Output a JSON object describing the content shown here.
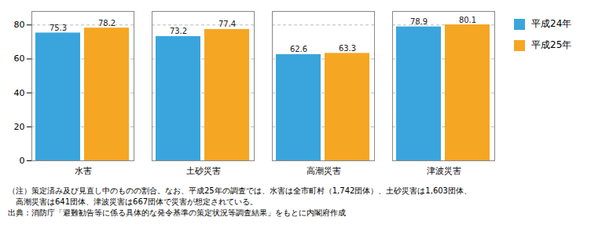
{
  "chart_data": {
    "type": "bar",
    "categories": [
      "水害",
      "土砂災害",
      "高潮災害",
      "津波災害"
    ],
    "series": [
      {
        "name": "平成24年",
        "color": "#3AA5DC",
        "values": [
          75.3,
          73.2,
          62.6,
          78.9
        ]
      },
      {
        "name": "平成25年",
        "color": "#F5A623",
        "values": [
          78.2,
          77.4,
          63.3,
          80.1
        ]
      }
    ],
    "ylim": [
      0,
      88
    ],
    "yticks": [
      0,
      20,
      40,
      60,
      80
    ],
    "grid": true,
    "legend": "right",
    "data_labels": true,
    "annotations": [
      "（注）策定済み及び見直し中のものの割合。なお、平成25年の調査では、水害は全市町村（1,742団体）、土砂災害は1,603団体、",
      "　高潮災害は641団体、津波災害は667団体で災害が想定されている。",
      "出典：消防庁「避難勧告等に係る具体的な発令基準の策定状況等調査結果」をもとに内閣府作成"
    ]
  }
}
